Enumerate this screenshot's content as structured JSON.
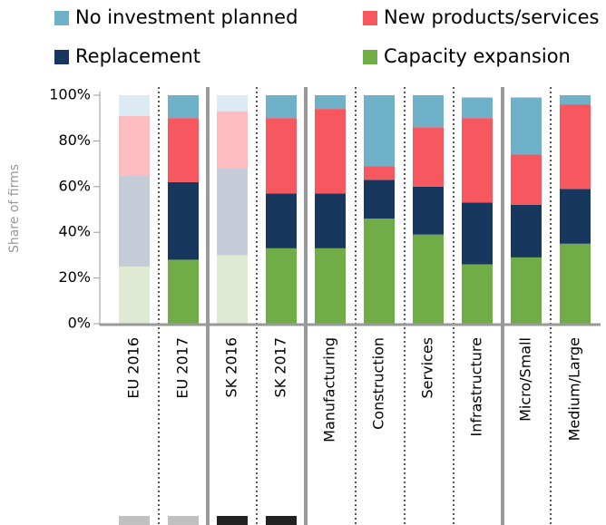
{
  "chart_data": {
    "type": "stacked_bar",
    "y_label": "Share of firms",
    "categories": [
      "EU 2016",
      "EU 2017",
      "SK 2016",
      "SK 2017",
      "Manufacturing",
      "Construction",
      "Services",
      "Infrastructure",
      "Micro/Small",
      "Medium/Large"
    ],
    "series": [
      {
        "name": "Capacity expansion",
        "color": "#70ad47",
        "colors": [
          "#dfe9d3",
          "#70ad47",
          "#dfe9d3",
          "#70ad47",
          "#70ad47",
          "#70ad47",
          "#70ad47",
          "#70ad47",
          "#70ad47",
          "#70ad47"
        ],
        "values": [
          25,
          28,
          30,
          33,
          33,
          46,
          39,
          26,
          29,
          35
        ]
      },
      {
        "name": "Replacement",
        "color": "#17375e",
        "colors": [
          "#c5ccd8",
          "#17375e",
          "#c5ccd8",
          "#17375e",
          "#17375e",
          "#17375e",
          "#17375e",
          "#17375e",
          "#17375e",
          "#17375e"
        ],
        "values": [
          40,
          34,
          38,
          24,
          24,
          17,
          21,
          27,
          23,
          24
        ]
      },
      {
        "name": "New products/services",
        "color": "#f7575f",
        "colors": [
          "#fdbcc0",
          "#f7575f",
          "#fdbcc0",
          "#f7575f",
          "#f7575f",
          "#f7575f",
          "#f7575f",
          "#f7575f",
          "#f7575f",
          "#f7575f"
        ],
        "values": [
          26,
          28,
          25,
          33,
          37,
          6,
          26,
          37,
          22,
          37
        ]
      },
      {
        "name": "No investment planned",
        "color": "#6eb1c8",
        "colors": [
          "#dcebf3",
          "#6eb1c8",
          "#dcebf3",
          "#6eb1c8",
          "#6eb1c8",
          "#6eb1c8",
          "#6eb1c8",
          "#6eb1c8",
          "#6eb1c8",
          "#6eb1c8"
        ],
        "values": [
          9,
          10,
          7,
          10,
          6,
          31,
          14,
          9,
          25,
          4
        ]
      }
    ],
    "ylim": [
      0,
      100
    ],
    "yticks": [
      {
        "value": 0,
        "label": "0%"
      },
      {
        "value": 20,
        "label": "20%"
      },
      {
        "value": 40,
        "label": "40%"
      },
      {
        "value": 60,
        "label": "60%"
      },
      {
        "value": 80,
        "label": "80%"
      },
      {
        "value": 100,
        "label": "100%"
      }
    ]
  }
}
